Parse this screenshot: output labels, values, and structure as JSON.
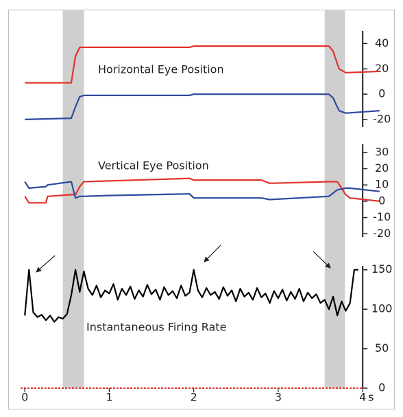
{
  "chart_data": [
    {
      "type": "line",
      "title": "Horizontal Eye Position",
      "x": [
        0,
        0.55,
        0.6,
        0.65,
        0.7,
        1.95,
        2.0,
        3.6,
        3.65,
        3.72,
        3.8,
        4.2
      ],
      "series": [
        {
          "color": "#e2322b",
          "values": [
            9,
            9,
            30,
            37,
            37,
            37,
            38,
            38,
            34,
            20,
            17,
            18
          ]
        },
        {
          "color": "#2f4a9e",
          "values": [
            -20,
            -19,
            -10,
            -2,
            -1,
            -1,
            0,
            0,
            -3,
            -13,
            -15,
            -13
          ]
        }
      ],
      "ylim": [
        -26,
        50
      ],
      "yticks": [
        -20,
        0,
        20,
        40
      ]
    },
    {
      "type": "line",
      "title": "Vertical Eye Position",
      "x": [
        0,
        0.05,
        0.25,
        0.27,
        0.55,
        0.6,
        0.65,
        0.7,
        1.0,
        1.95,
        2.0,
        2.8,
        2.9,
        3.6,
        3.7,
        3.8,
        3.85,
        4.2
      ],
      "series": [
        {
          "color": "#e2322b",
          "values": [
            3,
            -1,
            -1,
            3,
            4,
            4,
            9,
            12,
            12.5,
            14,
            13,
            13,
            11,
            12,
            12,
            4,
            2,
            0
          ]
        },
        {
          "color": "#2f4a9e",
          "values": [
            12,
            8,
            9,
            10,
            12,
            2,
            3,
            3,
            3.5,
            4.5,
            2,
            2,
            1,
            3,
            7,
            8,
            8,
            6
          ]
        }
      ],
      "ylim": [
        -22,
        35
      ],
      "yticks": [
        -20,
        -10,
        0,
        10,
        20,
        30
      ]
    },
    {
      "type": "line",
      "title": "Instantaneous Firing Rate",
      "x": [
        0,
        0.05,
        0.1,
        0.15,
        0.2,
        0.25,
        0.3,
        0.35,
        0.4,
        0.45,
        0.5,
        0.55,
        0.6,
        0.65,
        0.7,
        0.75,
        0.8,
        0.85,
        0.9,
        0.95,
        1.0,
        1.05,
        1.1,
        1.15,
        1.2,
        1.25,
        1.3,
        1.35,
        1.4,
        1.45,
        1.5,
        1.55,
        1.6,
        1.65,
        1.7,
        1.75,
        1.8,
        1.85,
        1.9,
        1.95,
        2.0,
        2.05,
        2.1,
        2.15,
        2.2,
        2.25,
        2.3,
        2.35,
        2.4,
        2.45,
        2.5,
        2.55,
        2.6,
        2.65,
        2.7,
        2.75,
        2.8,
        2.85,
        2.9,
        2.95,
        3.0,
        3.05,
        3.1,
        3.15,
        3.2,
        3.25,
        3.3,
        3.35,
        3.4,
        3.45,
        3.5,
        3.55,
        3.6,
        3.65,
        3.7,
        3.75,
        3.8,
        3.85,
        3.9,
        3.95
      ],
      "series": [
        {
          "color": "#000000",
          "values": [
            92,
            150,
            96,
            90,
            93,
            86,
            92,
            84,
            90,
            88,
            94,
            118,
            150,
            122,
            148,
            126,
            118,
            130,
            115,
            124,
            120,
            132,
            112,
            126,
            118,
            129,
            113,
            124,
            116,
            131,
            119,
            125,
            112,
            128,
            118,
            123,
            114,
            130,
            117,
            121,
            150,
            124,
            115,
            127,
            118,
            122,
            113,
            128,
            117,
            124,
            110,
            126,
            116,
            121,
            112,
            127,
            115,
            120,
            108,
            123,
            114,
            125,
            111,
            122,
            113,
            126,
            110,
            121,
            114,
            119,
            108,
            112,
            100,
            116,
            92,
            110,
            98,
            108,
            150,
            150
          ]
        }
      ],
      "ylim": [
        0,
        155
      ],
      "yticks": [
        0,
        50,
        100,
        150
      ],
      "xlim": [
        -0.05,
        4.25
      ],
      "xticks": [
        0,
        1,
        2,
        3,
        4
      ],
      "x_label": "s",
      "shaded_spans": [
        [
          0.45,
          0.7
        ],
        [
          3.55,
          3.79
        ]
      ]
    }
  ]
}
